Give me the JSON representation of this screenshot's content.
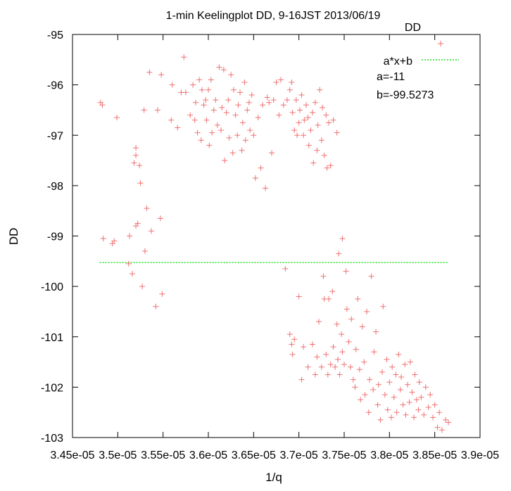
{
  "chart_data": {
    "type": "scatter",
    "title": "1-min Keelingplot DD, 9-16JST 2013/06/19",
    "xlabel": "1/q",
    "ylabel": "DD",
    "xlim": [
      3.45e-05,
      3.9e-05
    ],
    "ylim": [
      -103,
      -95
    ],
    "xticks": [
      3.45e-05,
      3.5e-05,
      3.55e-05,
      3.6e-05,
      3.65e-05,
      3.7e-05,
      3.75e-05,
      3.8e-05,
      3.85e-05,
      3.9e-05
    ],
    "xtick_labels": [
      "3.45e-05",
      "3.5e-05",
      "3.55e-05",
      "3.6e-05",
      "3.65e-05",
      "3.7e-05",
      "3.75e-05",
      "3.8e-05",
      "3.85e-05",
      "3.9e-05"
    ],
    "yticks": [
      -95,
      -96,
      -97,
      -98,
      -99,
      -100,
      -101,
      -102,
      -103
    ],
    "ytick_labels": [
      "-95",
      "-96",
      "-97",
      "-98",
      "-99",
      "-100",
      "-101",
      "-102",
      "-103"
    ],
    "legend_position": "top-right",
    "grid": false,
    "series": [
      {
        "name": "DD",
        "marker": "+",
        "color": "#f07070",
        "points": [
          [
            3.481e-05,
            -96.35
          ],
          [
            3.483e-05,
            -96.4
          ],
          [
            3.484e-05,
            -99.05
          ],
          [
            3.494e-05,
            -99.15
          ],
          [
            3.496e-05,
            -99.1
          ],
          [
            3.499e-05,
            -96.65
          ],
          [
            3.512e-05,
            -99.55
          ],
          [
            3.516e-05,
            -99.75
          ],
          [
            3.513e-05,
            -99.0
          ],
          [
            3.518e-05,
            -97.55
          ],
          [
            3.52e-05,
            -97.25
          ],
          [
            3.52e-05,
            -97.4
          ],
          [
            3.52e-05,
            -98.8
          ],
          [
            3.522e-05,
            -98.75
          ],
          [
            3.524e-05,
            -97.6
          ],
          [
            3.525e-05,
            -97.95
          ],
          [
            3.527e-05,
            -100.0
          ],
          [
            3.529e-05,
            -96.5
          ],
          [
            3.53e-05,
            -99.3
          ],
          [
            3.532e-05,
            -98.45
          ],
          [
            3.535e-05,
            -95.75
          ],
          [
            3.537e-05,
            -98.9
          ],
          [
            3.542e-05,
            -100.4
          ],
          [
            3.544e-05,
            -96.5
          ],
          [
            3.547e-05,
            -98.65
          ],
          [
            3.548e-05,
            -95.8
          ],
          [
            3.549e-05,
            -100.15
          ],
          [
            3.559e-05,
            -96.7
          ],
          [
            3.56e-05,
            -96.0
          ],
          [
            3.566e-05,
            -96.85
          ],
          [
            3.57e-05,
            -96.15
          ],
          [
            3.573e-05,
            -95.45
          ],
          [
            3.575e-05,
            -96.15
          ],
          [
            3.58e-05,
            -96.6
          ],
          [
            3.583e-05,
            -96.0
          ],
          [
            3.585e-05,
            -96.7
          ],
          [
            3.586e-05,
            -96.35
          ],
          [
            3.588e-05,
            -96.95
          ],
          [
            3.59e-05,
            -95.9
          ],
          [
            3.592e-05,
            -97.1
          ],
          [
            3.593e-05,
            -96.1
          ],
          [
            3.595e-05,
            -96.4
          ],
          [
            3.597e-05,
            -96.3
          ],
          [
            3.598e-05,
            -96.7
          ],
          [
            3.6e-05,
            -96.1
          ],
          [
            3.601e-05,
            -97.2
          ],
          [
            3.603e-05,
            -95.9
          ],
          [
            3.604e-05,
            -96.95
          ],
          [
            3.606e-05,
            -96.5
          ],
          [
            3.608e-05,
            -96.3
          ],
          [
            3.61e-05,
            -96.8
          ],
          [
            3.612e-05,
            -95.65
          ],
          [
            3.614e-05,
            -96.9
          ],
          [
            3.615e-05,
            -96.45
          ],
          [
            3.617e-05,
            -95.7
          ],
          [
            3.618e-05,
            -97.5
          ],
          [
            3.62e-05,
            -96.55
          ],
          [
            3.622e-05,
            -96.3
          ],
          [
            3.623e-05,
            -97.05
          ],
          [
            3.625e-05,
            -95.8
          ],
          [
            3.627e-05,
            -97.35
          ],
          [
            3.628e-05,
            -96.1
          ],
          [
            3.63e-05,
            -96.6
          ],
          [
            3.632e-05,
            -97.0
          ],
          [
            3.633e-05,
            -96.4
          ],
          [
            3.635e-05,
            -96.15
          ],
          [
            3.637e-05,
            -97.3
          ],
          [
            3.638e-05,
            -96.75
          ],
          [
            3.64e-05,
            -95.95
          ],
          [
            3.641e-05,
            -97.1
          ],
          [
            3.643e-05,
            -96.5
          ],
          [
            3.645e-05,
            -96.35
          ],
          [
            3.646e-05,
            -96.9
          ],
          [
            3.648e-05,
            -96.2
          ],
          [
            3.65e-05,
            -97.0
          ],
          [
            3.652e-05,
            -97.85
          ],
          [
            3.655e-05,
            -96.65
          ],
          [
            3.658e-05,
            -97.65
          ],
          [
            3.66e-05,
            -96.4
          ],
          [
            3.663e-05,
            -98.05
          ],
          [
            3.665e-05,
            -96.25
          ],
          [
            3.667e-05,
            -96.35
          ],
          [
            3.67e-05,
            -97.35
          ],
          [
            3.672e-05,
            -96.3
          ],
          [
            3.675e-05,
            -95.95
          ],
          [
            3.678e-05,
            -96.6
          ],
          [
            3.68e-05,
            -95.9
          ],
          [
            3.683e-05,
            -96.4
          ],
          [
            3.685e-05,
            -99.65
          ],
          [
            3.687e-05,
            -96.3
          ],
          [
            3.69e-05,
            -96.1
          ],
          [
            3.692e-05,
            -95.95
          ],
          [
            3.693e-05,
            -96.55
          ],
          [
            3.695e-05,
            -96.9
          ],
          [
            3.697e-05,
            -96.3
          ],
          [
            3.698e-05,
            -97.0
          ],
          [
            3.7e-05,
            -96.75
          ],
          [
            3.701e-05,
            -96.5
          ],
          [
            3.703e-05,
            -96.2
          ],
          [
            3.705e-05,
            -97.0
          ],
          [
            3.706e-05,
            -96.7
          ],
          [
            3.708e-05,
            -96.4
          ],
          [
            3.71e-05,
            -96.65
          ],
          [
            3.711e-05,
            -97.2
          ],
          [
            3.713e-05,
            -96.9
          ],
          [
            3.715e-05,
            -96.55
          ],
          [
            3.716e-05,
            -97.55
          ],
          [
            3.718e-05,
            -96.35
          ],
          [
            3.72e-05,
            -97.3
          ],
          [
            3.721e-05,
            -96.8
          ],
          [
            3.723e-05,
            -96.1
          ],
          [
            3.725e-05,
            -97.1
          ],
          [
            3.726e-05,
            -96.45
          ],
          [
            3.728e-05,
            -97.4
          ],
          [
            3.73e-05,
            -96.6
          ],
          [
            3.731e-05,
            -97.65
          ],
          [
            3.733e-05,
            -96.75
          ],
          [
            3.735e-05,
            -97.6
          ],
          [
            3.738e-05,
            -96.7
          ],
          [
            3.742e-05,
            -96.95
          ],
          [
            3.744e-05,
            -99.35
          ],
          [
            3.748e-05,
            -99.05
          ],
          [
            3.69e-05,
            -100.95
          ],
          [
            3.692e-05,
            -101.15
          ],
          [
            3.693e-05,
            -101.35
          ],
          [
            3.695e-05,
            -101.05
          ],
          [
            3.7e-05,
            -100.2
          ],
          [
            3.703e-05,
            -101.85
          ],
          [
            3.705e-05,
            -101.2
          ],
          [
            3.71e-05,
            -101.6
          ],
          [
            3.715e-05,
            -101.15
          ],
          [
            3.718e-05,
            -101.75
          ],
          [
            3.72e-05,
            -101.4
          ],
          [
            3.722e-05,
            -100.7
          ],
          [
            3.725e-05,
            -101.6
          ],
          [
            3.727e-05,
            -99.8
          ],
          [
            3.728e-05,
            -100.25
          ],
          [
            3.73e-05,
            -101.35
          ],
          [
            3.732e-05,
            -101.75
          ],
          [
            3.733e-05,
            -100.25
          ],
          [
            3.735e-05,
            -101.55
          ],
          [
            3.737e-05,
            -100.1
          ],
          [
            3.738e-05,
            -101.2
          ],
          [
            3.74e-05,
            -101.6
          ],
          [
            3.742e-05,
            -100.75
          ],
          [
            3.743e-05,
            -101.45
          ],
          [
            3.745e-05,
            -101.75
          ],
          [
            3.747e-05,
            -100.95
          ],
          [
            3.748e-05,
            -101.3
          ],
          [
            3.75e-05,
            -101.55
          ],
          [
            3.752e-05,
            -99.7
          ],
          [
            3.753e-05,
            -100.45
          ],
          [
            3.755e-05,
            -101.1
          ],
          [
            3.757e-05,
            -101.6
          ],
          [
            3.758e-05,
            -100.65
          ],
          [
            3.76e-05,
            -101.85
          ],
          [
            3.762e-05,
            -102.0
          ],
          [
            3.763e-05,
            -101.25
          ],
          [
            3.765e-05,
            -100.25
          ],
          [
            3.767e-05,
            -101.65
          ],
          [
            3.768e-05,
            -102.25
          ],
          [
            3.77e-05,
            -100.8
          ],
          [
            3.772e-05,
            -101.5
          ],
          [
            3.773e-05,
            -102.15
          ],
          [
            3.775e-05,
            -100.5
          ],
          [
            3.777e-05,
            -102.5
          ],
          [
            3.778e-05,
            -101.85
          ],
          [
            3.78e-05,
            -99.8
          ],
          [
            3.782e-05,
            -102.05
          ],
          [
            3.783e-05,
            -101.3
          ],
          [
            3.785e-05,
            -100.9
          ],
          [
            3.787e-05,
            -102.35
          ],
          [
            3.788e-05,
            -101.95
          ],
          [
            3.79e-05,
            -102.65
          ],
          [
            3.792e-05,
            -101.7
          ],
          [
            3.793e-05,
            -100.4
          ],
          [
            3.795e-05,
            -102.15
          ],
          [
            3.797e-05,
            -101.45
          ],
          [
            3.798e-05,
            -102.45
          ],
          [
            3.8e-05,
            -101.9
          ],
          [
            3.802e-05,
            -102.6
          ],
          [
            3.803e-05,
            -101.6
          ],
          [
            3.805e-05,
            -102.2
          ],
          [
            3.807e-05,
            -101.75
          ],
          [
            3.808e-05,
            -102.5
          ],
          [
            3.81e-05,
            -101.35
          ],
          [
            3.812e-05,
            -102.05
          ],
          [
            3.813e-05,
            -101.8
          ],
          [
            3.815e-05,
            -102.35
          ],
          [
            3.817e-05,
            -101.55
          ],
          [
            3.818e-05,
            -102.55
          ],
          [
            3.82e-05,
            -101.95
          ],
          [
            3.822e-05,
            -102.3
          ],
          [
            3.823e-05,
            -101.5
          ],
          [
            3.825e-05,
            -102.1
          ],
          [
            3.827e-05,
            -102.6
          ],
          [
            3.828e-05,
            -101.75
          ],
          [
            3.83e-05,
            -102.25
          ],
          [
            3.832e-05,
            -102.45
          ],
          [
            3.833e-05,
            -101.9
          ],
          [
            3.835e-05,
            -102.2
          ],
          [
            3.838e-05,
            -102.55
          ],
          [
            3.84e-05,
            -102.0
          ],
          [
            3.843e-05,
            -102.4
          ],
          [
            3.845e-05,
            -102.15
          ],
          [
            3.848e-05,
            -102.6
          ],
          [
            3.85e-05,
            -102.35
          ],
          [
            3.853e-05,
            -102.8
          ],
          [
            3.855e-05,
            -102.5
          ],
          [
            3.858e-05,
            -102.85
          ],
          [
            3.862e-05,
            -102.65
          ],
          [
            3.865e-05,
            -102.7
          ]
        ]
      },
      {
        "name": "a*x+b",
        "line_style": "dashed",
        "color": "#22dd22",
        "x": [
          3.48e-05,
          3.865e-05
        ],
        "y": [
          -99.5273,
          -99.5273
        ]
      }
    ],
    "annotations": [
      "a=-11",
      "b=-99.5273"
    ]
  }
}
